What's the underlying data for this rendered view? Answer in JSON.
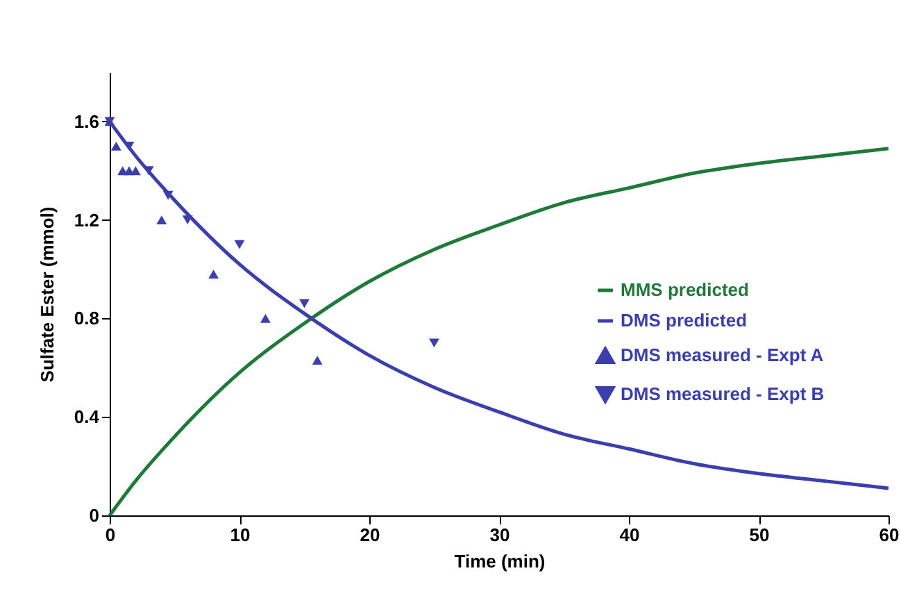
{
  "chart_data": {
    "type": "line",
    "xlabel": "Time (min)",
    "ylabel": "Sulfate Ester (mmol)",
    "xlim": [
      0,
      60
    ],
    "xticks": [
      0,
      10,
      20,
      30,
      40,
      50,
      60
    ],
    "ylim": [
      0,
      1.8
    ],
    "yticks": [
      0,
      0.4,
      0.8,
      1.2,
      1.6
    ],
    "grid": false,
    "legend": "right",
    "series": [
      {
        "name": "MMS predicted",
        "color": "#1f7a3a",
        "x": [
          0,
          2,
          5,
          10,
          15,
          20,
          25,
          30,
          35,
          40,
          45,
          50,
          55,
          60
        ],
        "values": [
          0,
          0.14,
          0.32,
          0.58,
          0.78,
          0.95,
          1.08,
          1.18,
          1.27,
          1.33,
          1.39,
          1.43,
          1.46,
          1.49
        ]
      },
      {
        "name": "DMS predicted",
        "color": "#3b3fae",
        "x": [
          0,
          2,
          5,
          10,
          15,
          20,
          25,
          30,
          35,
          40,
          45,
          50,
          55,
          60
        ],
        "values": [
          1.6,
          1.46,
          1.28,
          1.02,
          0.82,
          0.65,
          0.52,
          0.42,
          0.33,
          0.27,
          0.21,
          0.17,
          0.14,
          0.11
        ]
      },
      {
        "name": "DMS measured - Expt A",
        "type": "scatter",
        "marker": "triangle",
        "color": "#3b3fae",
        "x": [
          0,
          0.5,
          1,
          1.5,
          2,
          4,
          8,
          12,
          16
        ],
        "values": [
          1.6,
          1.5,
          1.4,
          1.4,
          1.4,
          1.2,
          0.98,
          0.8,
          0.63
        ]
      },
      {
        "name": "DMS measured - Expt B",
        "type": "scatter",
        "marker": "triangle-down",
        "color": "#3b3fae",
        "x": [
          0,
          1.5,
          3,
          4.5,
          6,
          10,
          15,
          25
        ],
        "values": [
          1.6,
          1.5,
          1.4,
          1.3,
          1.2,
          1.1,
          0.86,
          0.7
        ]
      }
    ]
  }
}
